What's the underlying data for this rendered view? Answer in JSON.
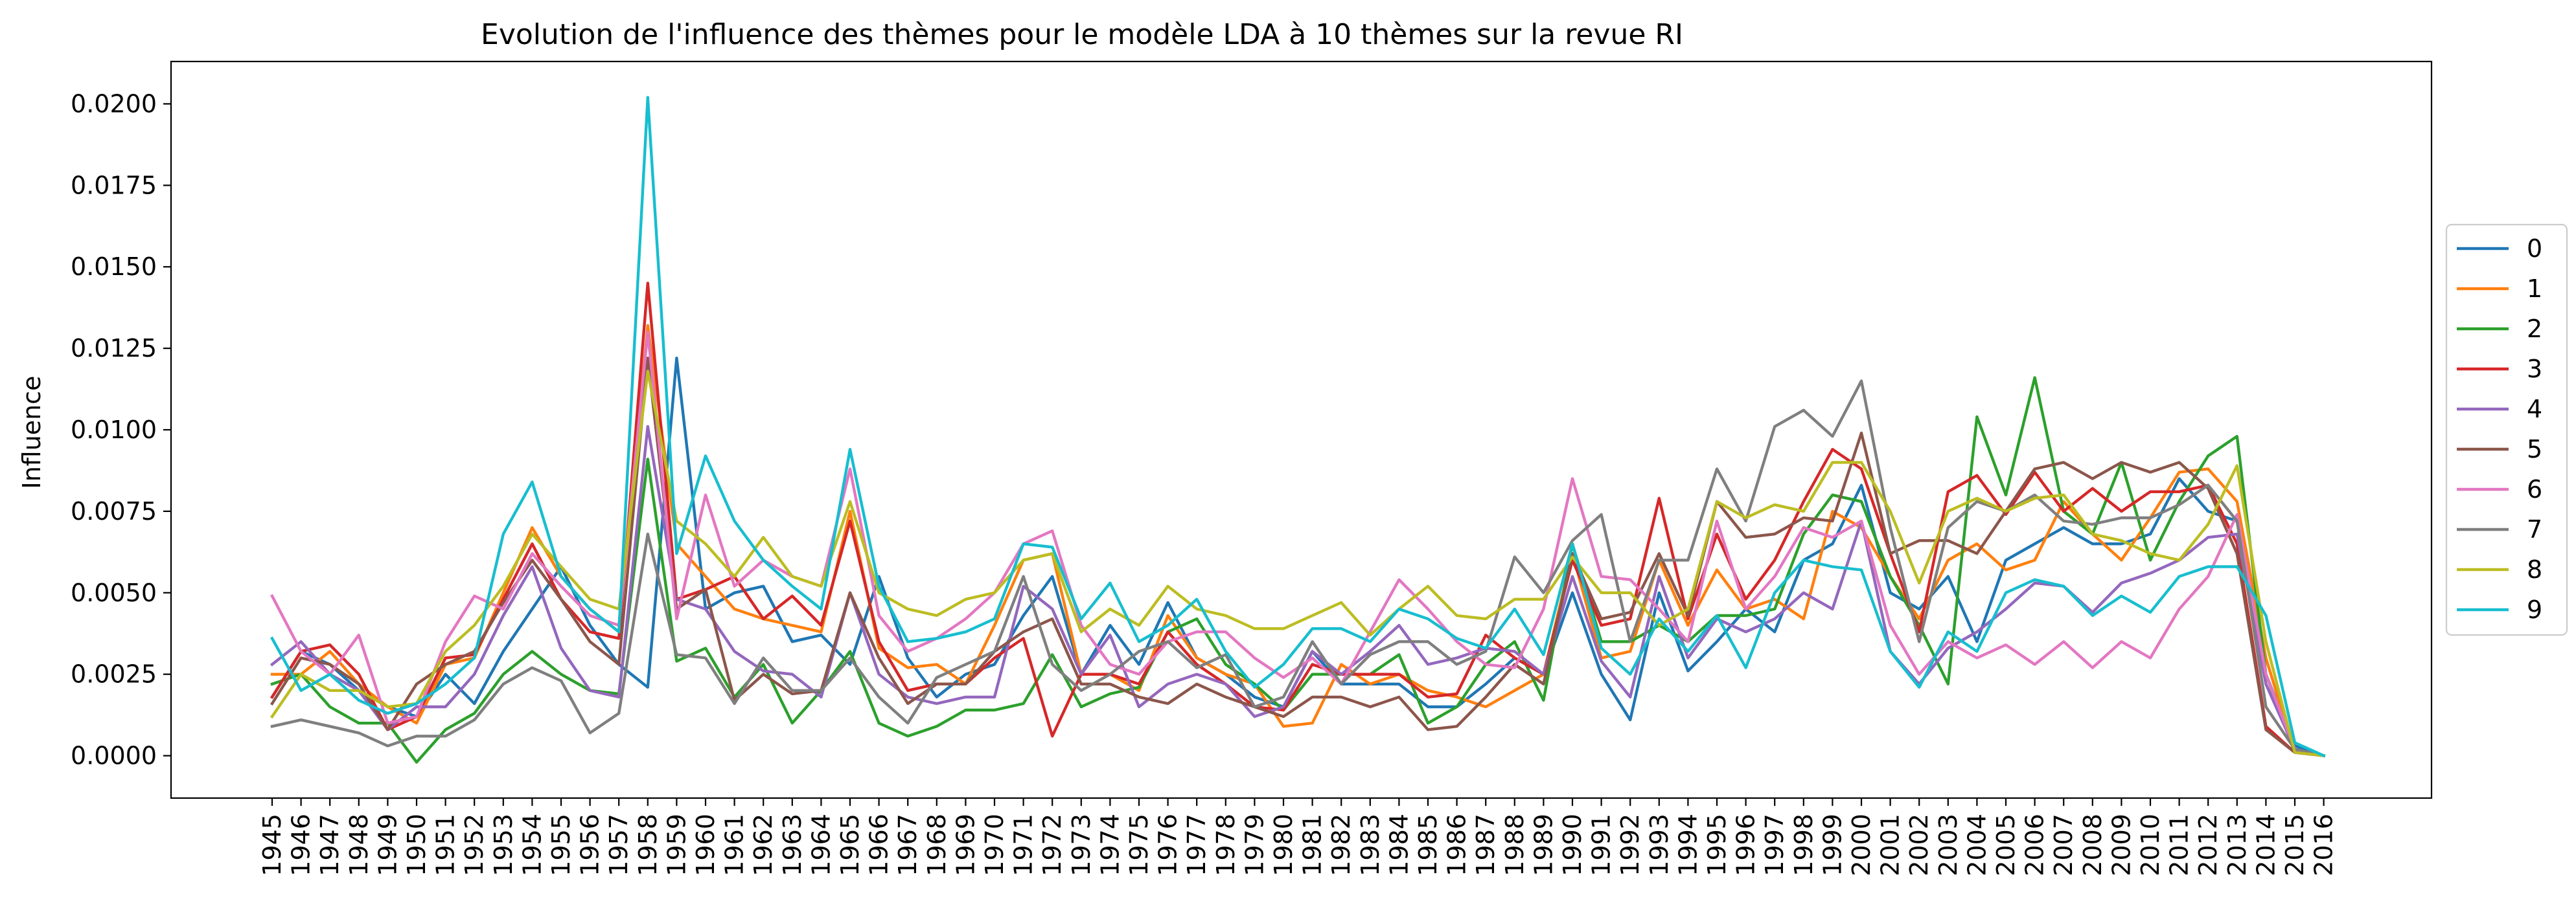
{
  "chart_data": {
    "type": "line",
    "title": "Evolution de l'influence des thèmes pour le modèle LDA à 10 thèmes sur la revue RI",
    "xlabel": "",
    "ylabel": "Influence",
    "ylim": [
      -0.0013,
      0.0213
    ],
    "yticks": [
      "0.0000",
      "0.0025",
      "0.0050",
      "0.0075",
      "0.0100",
      "0.0125",
      "0.0150",
      "0.0175",
      "0.0200"
    ],
    "grid": false,
    "legend_position": "center-right, outside plot",
    "x": [
      "1945",
      "1946",
      "1947",
      "1948",
      "1949",
      "1950",
      "1951",
      "1952",
      "1953",
      "1954",
      "1955",
      "1956",
      "1957",
      "1958",
      "1959",
      "1960",
      "1961",
      "1962",
      "1963",
      "1964",
      "1965",
      "1966",
      "1967",
      "1968",
      "1969",
      "1970",
      "1971",
      "1972",
      "1973",
      "1974",
      "1975",
      "1976",
      "1977",
      "1978",
      "1979",
      "1980",
      "1981",
      "1982",
      "1983",
      "1984",
      "1985",
      "1986",
      "1987",
      "1988",
      "1989",
      "1990",
      "1991",
      "1992",
      "1993",
      "1994",
      "1995",
      "1996",
      "1997",
      "1998",
      "1999",
      "2000",
      "2001",
      "2002",
      "2003",
      "2004",
      "2005",
      "2006",
      "2007",
      "2008",
      "2009",
      "2010",
      "2011",
      "2012",
      "2013",
      "2014",
      "2015",
      "2016"
    ],
    "series": [
      {
        "name": "0",
        "color": "#1f77b4",
        "values": [
          0.0018,
          0.0032,
          0.0028,
          0.002,
          0.0015,
          0.0012,
          0.0025,
          0.0016,
          0.0032,
          0.0045,
          0.0058,
          0.004,
          0.0028,
          0.0021,
          0.0122,
          0.0045,
          0.005,
          0.0052,
          0.0035,
          0.0037,
          0.0028,
          0.0055,
          0.003,
          0.0018,
          0.0025,
          0.0028,
          0.0043,
          0.0055,
          0.0025,
          0.004,
          0.0028,
          0.0047,
          0.003,
          0.0025,
          0.0018,
          0.0015,
          0.0032,
          0.0022,
          0.0022,
          0.0022,
          0.0015,
          0.0015,
          0.0022,
          0.003,
          0.0025,
          0.005,
          0.0025,
          0.0011,
          0.005,
          0.0026,
          0.0035,
          0.0045,
          0.0038,
          0.006,
          0.0065,
          0.0083,
          0.005,
          0.0045,
          0.0055,
          0.0035,
          0.006,
          0.0065,
          0.007,
          0.0065,
          0.0065,
          0.0068,
          0.0085,
          0.0075,
          0.0072,
          0.0025,
          0.0003,
          0.0
        ]
      },
      {
        "name": "1",
        "color": "#ff7f0e",
        "values": [
          0.0025,
          0.0025,
          0.0032,
          0.0022,
          0.0015,
          0.001,
          0.0028,
          0.003,
          0.005,
          0.007,
          0.0055,
          0.0045,
          0.0038,
          0.0132,
          0.0065,
          0.0055,
          0.0045,
          0.0042,
          0.004,
          0.0038,
          0.0075,
          0.0033,
          0.0027,
          0.0028,
          0.0022,
          0.004,
          0.006,
          0.0062,
          0.0025,
          0.0025,
          0.002,
          0.0043,
          0.003,
          0.0025,
          0.0022,
          0.0009,
          0.001,
          0.0028,
          0.0022,
          0.0025,
          0.002,
          0.0018,
          0.0015,
          0.002,
          0.0025,
          0.0062,
          0.003,
          0.0032,
          0.006,
          0.004,
          0.0057,
          0.0045,
          0.0048,
          0.0042,
          0.0075,
          0.007,
          0.0055,
          0.0042,
          0.006,
          0.0065,
          0.0057,
          0.006,
          0.0078,
          0.0068,
          0.006,
          0.0073,
          0.0087,
          0.0088,
          0.0078,
          0.003,
          0.0001,
          0.0
        ]
      },
      {
        "name": "2",
        "color": "#2ca02c",
        "values": [
          0.0022,
          0.0025,
          0.0015,
          0.001,
          0.001,
          -0.0002,
          0.0008,
          0.0013,
          0.0025,
          0.0032,
          0.0025,
          0.002,
          0.0019,
          0.0091,
          0.0029,
          0.0033,
          0.0018,
          0.0028,
          0.001,
          0.002,
          0.0032,
          0.001,
          0.0006,
          0.0009,
          0.0014,
          0.0014,
          0.0016,
          0.0031,
          0.0015,
          0.0019,
          0.0021,
          0.0038,
          0.0042,
          0.0028,
          0.0022,
          0.0014,
          0.0025,
          0.0025,
          0.0025,
          0.0031,
          0.001,
          0.0015,
          0.0028,
          0.0035,
          0.0017,
          0.0065,
          0.0035,
          0.0035,
          0.004,
          0.0035,
          0.0043,
          0.0043,
          0.0045,
          0.0068,
          0.008,
          0.0078,
          0.0055,
          0.004,
          0.0022,
          0.0104,
          0.008,
          0.0116,
          0.0075,
          0.0068,
          0.009,
          0.006,
          0.0078,
          0.0092,
          0.0098,
          0.0025,
          0.0001,
          0.0
        ]
      },
      {
        "name": "3",
        "color": "#d62728",
        "values": [
          0.0018,
          0.0032,
          0.0034,
          0.0025,
          0.0008,
          0.0012,
          0.003,
          0.0031,
          0.0048,
          0.0065,
          0.0048,
          0.0038,
          0.0036,
          0.0145,
          0.0048,
          0.0051,
          0.0055,
          0.0042,
          0.0049,
          0.004,
          0.0072,
          0.0035,
          0.002,
          0.0022,
          0.0022,
          0.003,
          0.0036,
          0.0006,
          0.0025,
          0.0025,
          0.0022,
          0.0038,
          0.0028,
          0.0022,
          0.0015,
          0.0014,
          0.0028,
          0.0025,
          0.0025,
          0.0025,
          0.0018,
          0.0019,
          0.0037,
          0.003,
          0.0025,
          0.006,
          0.004,
          0.0042,
          0.0079,
          0.0042,
          0.0068,
          0.0048,
          0.006,
          0.0078,
          0.0094,
          0.0088,
          0.0062,
          0.0038,
          0.0081,
          0.0086,
          0.0074,
          0.0087,
          0.0075,
          0.0082,
          0.0075,
          0.0081,
          0.0081,
          0.0083,
          0.0065,
          0.0009,
          0.0001,
          0.0
        ]
      },
      {
        "name": "4",
        "color": "#9467bd",
        "values": [
          0.0028,
          0.0035,
          0.0025,
          0.002,
          0.0008,
          0.0015,
          0.0015,
          0.0025,
          0.0043,
          0.0058,
          0.0033,
          0.002,
          0.0018,
          0.0101,
          0.0048,
          0.0045,
          0.0032,
          0.0026,
          0.0025,
          0.0018,
          0.005,
          0.0025,
          0.0018,
          0.0016,
          0.0018,
          0.0018,
          0.0052,
          0.0045,
          0.0025,
          0.0037,
          0.0015,
          0.0022,
          0.0025,
          0.0022,
          0.0012,
          0.0015,
          0.0032,
          0.0025,
          0.0032,
          0.004,
          0.0028,
          0.003,
          0.0033,
          0.0032,
          0.0025,
          0.0055,
          0.0029,
          0.0018,
          0.0055,
          0.003,
          0.0042,
          0.0038,
          0.0042,
          0.005,
          0.0045,
          0.0072,
          0.0032,
          0.0022,
          0.0033,
          0.0038,
          0.0045,
          0.0053,
          0.0052,
          0.0044,
          0.0053,
          0.0056,
          0.006,
          0.0067,
          0.0068,
          0.0022,
          0.0002,
          0.0
        ]
      },
      {
        "name": "5",
        "color": "#8c564b",
        "values": [
          0.0016,
          0.003,
          0.0028,
          0.0022,
          0.0008,
          0.0022,
          0.0028,
          0.0032,
          0.0047,
          0.006,
          0.0048,
          0.0035,
          0.0028,
          0.0122,
          0.0045,
          0.0051,
          0.0017,
          0.0025,
          0.0019,
          0.002,
          0.005,
          0.003,
          0.0016,
          0.0022,
          0.0022,
          0.0032,
          0.0038,
          0.0042,
          0.0022,
          0.0022,
          0.0018,
          0.0016,
          0.0022,
          0.0018,
          0.0015,
          0.0012,
          0.0018,
          0.0018,
          0.0015,
          0.0018,
          0.0008,
          0.0009,
          0.0018,
          0.0028,
          0.0022,
          0.0062,
          0.0042,
          0.0044,
          0.0062,
          0.0043,
          0.0078,
          0.0067,
          0.0068,
          0.0073,
          0.0072,
          0.0099,
          0.0062,
          0.0066,
          0.0066,
          0.0062,
          0.0075,
          0.0088,
          0.009,
          0.0085,
          0.009,
          0.0087,
          0.009,
          0.0082,
          0.0062,
          0.0008,
          0.0001,
          0.0
        ]
      },
      {
        "name": "6",
        "color": "#e377c2",
        "values": [
          0.0049,
          0.0032,
          0.0025,
          0.0037,
          0.001,
          0.0012,
          0.0035,
          0.0049,
          0.0045,
          0.0062,
          0.0052,
          0.0043,
          0.004,
          0.013,
          0.0042,
          0.008,
          0.0052,
          0.006,
          0.0055,
          0.0052,
          0.0088,
          0.0043,
          0.0032,
          0.0036,
          0.0042,
          0.005,
          0.0065,
          0.0069,
          0.004,
          0.0028,
          0.0025,
          0.0035,
          0.0038,
          0.0038,
          0.003,
          0.0024,
          0.003,
          0.0022,
          0.0038,
          0.0054,
          0.0045,
          0.0035,
          0.0028,
          0.0027,
          0.0045,
          0.0085,
          0.0055,
          0.0054,
          0.0045,
          0.0035,
          0.0072,
          0.0045,
          0.0055,
          0.007,
          0.0067,
          0.0072,
          0.004,
          0.0025,
          0.0035,
          0.003,
          0.0034,
          0.0028,
          0.0035,
          0.0027,
          0.0035,
          0.003,
          0.0045,
          0.0055,
          0.0074,
          0.0025,
          0.0002,
          0.0
        ]
      },
      {
        "name": "7",
        "color": "#7f7f7f",
        "values": [
          0.0009,
          0.0011,
          0.0009,
          0.0007,
          0.0003,
          0.0006,
          0.0006,
          0.0011,
          0.0022,
          0.0027,
          0.0023,
          0.0007,
          0.0013,
          0.0068,
          0.0031,
          0.003,
          0.0016,
          0.003,
          0.002,
          0.002,
          0.003,
          0.0018,
          0.001,
          0.0024,
          0.0028,
          0.0032,
          0.0055,
          0.0028,
          0.002,
          0.0025,
          0.0032,
          0.0035,
          0.0027,
          0.0031,
          0.0015,
          0.0018,
          0.0035,
          0.0022,
          0.0031,
          0.0035,
          0.0035,
          0.0028,
          0.0032,
          0.0061,
          0.005,
          0.0066,
          0.0074,
          0.0035,
          0.006,
          0.006,
          0.0088,
          0.0072,
          0.0101,
          0.0106,
          0.0098,
          0.0115,
          0.007,
          0.0035,
          0.007,
          0.0078,
          0.0075,
          0.008,
          0.0072,
          0.0071,
          0.0073,
          0.0073,
          0.0077,
          0.0083,
          0.0072,
          0.0015,
          0.0002,
          0.0
        ]
      },
      {
        "name": "8",
        "color": "#bcbd22",
        "values": [
          0.0012,
          0.0025,
          0.002,
          0.002,
          0.0015,
          0.0016,
          0.0032,
          0.004,
          0.0052,
          0.0068,
          0.0058,
          0.0048,
          0.0045,
          0.0118,
          0.0072,
          0.0065,
          0.0055,
          0.0067,
          0.0055,
          0.0052,
          0.0078,
          0.005,
          0.0045,
          0.0043,
          0.0048,
          0.005,
          0.006,
          0.0062,
          0.0038,
          0.0045,
          0.004,
          0.0052,
          0.0045,
          0.0043,
          0.0039,
          0.0039,
          0.0043,
          0.0047,
          0.0037,
          0.0045,
          0.0052,
          0.0043,
          0.0042,
          0.0048,
          0.0048,
          0.0061,
          0.005,
          0.005,
          0.004,
          0.0045,
          0.0078,
          0.0073,
          0.0077,
          0.0075,
          0.009,
          0.009,
          0.0075,
          0.0053,
          0.0075,
          0.0079,
          0.0075,
          0.0079,
          0.008,
          0.0068,
          0.0066,
          0.0062,
          0.006,
          0.0071,
          0.0089,
          0.0035,
          0.0001,
          0.0
        ]
      },
      {
        "name": "9",
        "color": "#17becf",
        "values": [
          0.0036,
          0.002,
          0.0025,
          0.0017,
          0.0013,
          0.0016,
          0.0022,
          0.003,
          0.0068,
          0.0084,
          0.0055,
          0.0045,
          0.0038,
          0.0202,
          0.0062,
          0.0092,
          0.0072,
          0.006,
          0.0052,
          0.0045,
          0.0094,
          0.0052,
          0.0035,
          0.0036,
          0.0038,
          0.0042,
          0.0065,
          0.0064,
          0.0042,
          0.0053,
          0.0035,
          0.004,
          0.0048,
          0.0032,
          0.0021,
          0.0028,
          0.0039,
          0.0039,
          0.0035,
          0.0045,
          0.0042,
          0.0036,
          0.0033,
          0.0045,
          0.0031,
          0.0065,
          0.0033,
          0.0025,
          0.0042,
          0.0032,
          0.0043,
          0.0027,
          0.005,
          0.006,
          0.0058,
          0.0057,
          0.0032,
          0.0021,
          0.0038,
          0.0032,
          0.005,
          0.0054,
          0.0052,
          0.0043,
          0.0049,
          0.0044,
          0.0055,
          0.0058,
          0.0058,
          0.0043,
          0.0004,
          0.0
        ]
      }
    ]
  }
}
